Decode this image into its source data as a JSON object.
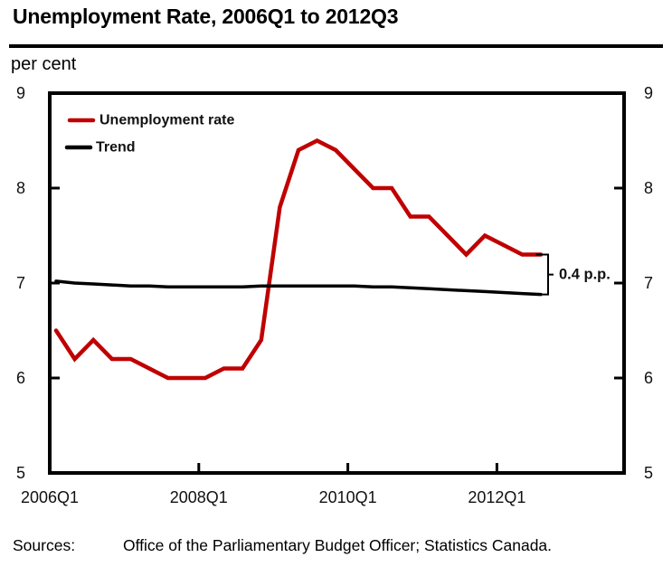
{
  "header": {
    "title": "Unemployment Rate, 2006Q1 to 2012Q3"
  },
  "chart_data": {
    "type": "line",
    "title": "Unemployment Rate, 2006Q1 to 2012Q3",
    "unit_label": "per cent",
    "x": [
      "2006Q1",
      "2006Q2",
      "2006Q3",
      "2006Q4",
      "2007Q1",
      "2007Q2",
      "2007Q3",
      "2007Q4",
      "2008Q1",
      "2008Q2",
      "2008Q3",
      "2008Q4",
      "2009Q1",
      "2009Q2",
      "2009Q3",
      "2009Q4",
      "2010Q1",
      "2010Q2",
      "2010Q3",
      "2010Q4",
      "2011Q1",
      "2011Q2",
      "2011Q3",
      "2011Q4",
      "2012Q1",
      "2012Q2",
      "2012Q3"
    ],
    "series": [
      {
        "name": "Unemployment rate",
        "color": "#C00000",
        "values": [
          6.5,
          6.2,
          6.4,
          6.2,
          6.2,
          6.1,
          6.0,
          6.0,
          6.0,
          6.1,
          6.1,
          6.4,
          7.8,
          8.4,
          8.5,
          8.4,
          8.2,
          8.0,
          8.0,
          7.7,
          7.7,
          7.5,
          7.3,
          7.5,
          7.4,
          7.3,
          7.3
        ]
      },
      {
        "name": "Trend",
        "color": "#000000",
        "values": [
          7.02,
          7.0,
          6.99,
          6.98,
          6.97,
          6.97,
          6.96,
          6.96,
          6.96,
          6.96,
          6.96,
          6.97,
          6.97,
          6.97,
          6.97,
          6.97,
          6.97,
          6.96,
          6.96,
          6.95,
          6.94,
          6.93,
          6.92,
          6.91,
          6.9,
          6.89,
          6.88
        ]
      }
    ],
    "ylim": [
      5,
      9
    ],
    "yticks": [
      5,
      6,
      7,
      8,
      9
    ],
    "y_axis_sides": "both",
    "xtick_labels": [
      "2006Q1",
      "2008Q1",
      "2010Q1",
      "2012Q1"
    ],
    "xtick_indices": [
      0,
      8,
      16,
      24
    ],
    "grid": false,
    "legend_position": "top-left-inside",
    "annotation": {
      "text": "0.4 p.p.",
      "meaning": "gap between last unemployment rate value and trend value"
    }
  },
  "footer": {
    "sources_label": "Sources:",
    "sources_text": "Office of the Parliamentary Budget Officer; Statistics Canada."
  }
}
